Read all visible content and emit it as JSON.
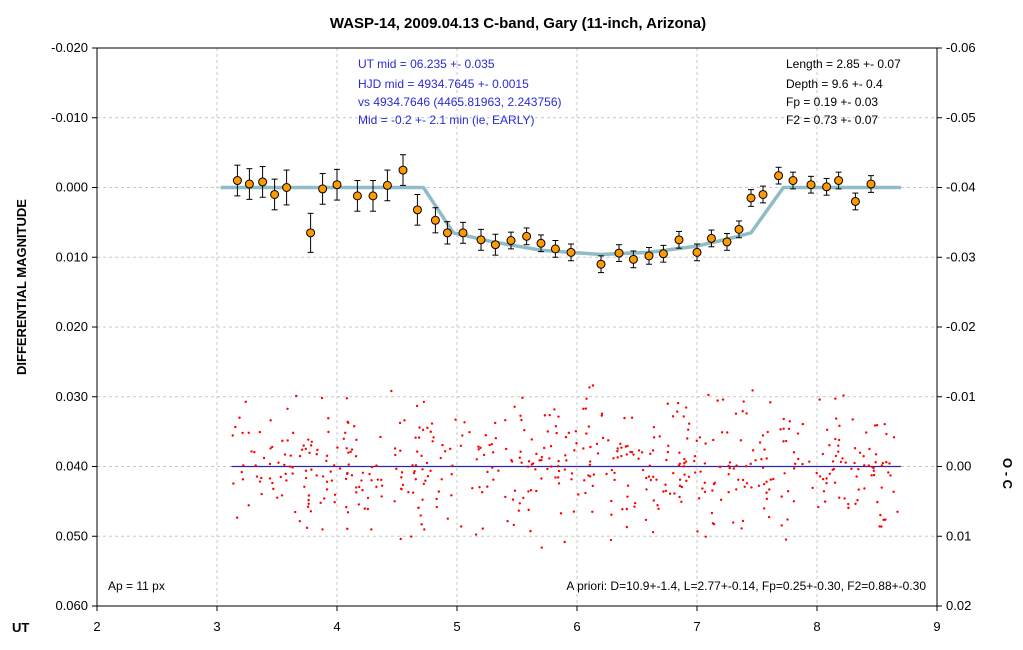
{
  "chart_data": {
    "type": "scatter",
    "title": "WASP-14, 2009.04.13 C-band, Gary (11-inch, Arizona)",
    "xlabel": "UT",
    "ylabel_left": "DIFFERENTIAL MAGNITUDE",
    "ylabel_right": "O - C",
    "xlim": [
      2,
      9
    ],
    "ylim_left": [
      0.06,
      -0.02
    ],
    "ylim_right": [
      0.02,
      -0.06
    ],
    "grid": true,
    "x_ticks": [
      "2",
      "3",
      "4",
      "5",
      "6",
      "7",
      "8",
      "9"
    ],
    "y_ticks_left": [
      "-0.020",
      "-0.010",
      "0.000",
      "0.010",
      "0.020",
      "0.030",
      "0.040",
      "0.050",
      "0.060"
    ],
    "y_ticks_right": [
      "-0.06",
      "-0.05",
      "-0.04",
      "-0.03",
      "-0.02",
      "-0.01",
      "0.00",
      "0.01",
      "0.02"
    ],
    "annotations_blue": [
      "UT mid = 06.235 +- 0.035",
      "HJD mid = 4934.7645 +- 0.0015",
      "vs 4934.7646  (4465.81963, 2.243756)",
      "Mid = -0.2 +- 2.1 min (ie, EARLY)"
    ],
    "annotations_black": [
      "Length = 2.85 +- 0.07",
      "Depth = 9.6 +- 0.4",
      "Fp = 0.19 +- 0.03",
      "F2 = 0.73 +- 0.07"
    ],
    "aperture_label": "Ap = 11 px",
    "apriori_label": "A priori: D=10.9+-1.4, L=2.77+-0.14, Fp=0.25+-0.30, F2=0.88+-0.30",
    "model_line": {
      "x": [
        3.03,
        4.72,
        4.97,
        5.3,
        5.7,
        6.2,
        6.6,
        7.0,
        7.3,
        7.45,
        7.72,
        8.7
      ],
      "y": [
        0.0,
        0.0,
        0.0065,
        0.0078,
        0.009,
        0.0096,
        0.0093,
        0.0084,
        0.0072,
        0.0065,
        0.0,
        0.0
      ]
    },
    "binned_series": {
      "x": [
        3.17,
        3.27,
        3.38,
        3.48,
        3.58,
        3.78,
        3.88,
        4.0,
        4.17,
        4.3,
        4.42,
        4.55,
        4.67,
        4.82,
        4.92,
        5.05,
        5.2,
        5.32,
        5.45,
        5.58,
        5.7,
        5.82,
        5.95,
        6.2,
        6.35,
        6.47,
        6.6,
        6.72,
        6.85,
        7.0,
        7.12,
        7.25,
        7.35,
        7.45,
        7.55,
        7.68,
        7.8,
        7.95,
        8.08,
        8.18,
        8.32,
        8.45
      ],
      "y": [
        -0.001,
        -0.0005,
        -0.0008,
        0.001,
        0.0,
        0.0065,
        0.0002,
        -0.0004,
        0.0012,
        0.0012,
        -0.0003,
        -0.0025,
        0.0032,
        0.0047,
        0.0065,
        0.0065,
        0.0075,
        0.0082,
        0.0076,
        0.007,
        0.008,
        0.0088,
        0.0093,
        0.011,
        0.0094,
        0.0103,
        0.0098,
        0.0095,
        0.0075,
        0.0093,
        0.0073,
        0.0078,
        0.006,
        0.0015,
        0.001,
        -0.0017,
        -0.001,
        -0.0004,
        -0.0001,
        -0.001,
        0.002,
        -0.0005
      ],
      "err": [
        0.0022,
        0.0022,
        0.0022,
        0.0022,
        0.0025,
        0.0028,
        0.0022,
        0.0022,
        0.0022,
        0.0022,
        0.0022,
        0.0022,
        0.0022,
        0.0018,
        0.0016,
        0.0015,
        0.0015,
        0.0015,
        0.0012,
        0.0012,
        0.0012,
        0.0012,
        0.0012,
        0.0012,
        0.0012,
        0.0012,
        0.0012,
        0.0012,
        0.0012,
        0.0012,
        0.0012,
        0.0012,
        0.0012,
        0.0012,
        0.0012,
        0.0012,
        0.0012,
        0.0012,
        0.0012,
        0.0012,
        0.0012,
        0.0012
      ]
    },
    "residual_baseline": {
      "x": [
        3.12,
        8.7
      ],
      "y": [
        0.04,
        0.04
      ]
    },
    "residuals": {
      "x_range": [
        3.12,
        8.7
      ],
      "count": 560,
      "center": 0.04,
      "spread": 0.0045
    },
    "colors": {
      "binned_fill": "#ff9900",
      "binned_edge": "#000000",
      "model_line": "#8fbcc6",
      "residual_points": "#ff0000",
      "baseline": "#2a2aa8",
      "grid": "#c8c8c8",
      "annotation_blue": "#2a2ad6"
    }
  }
}
